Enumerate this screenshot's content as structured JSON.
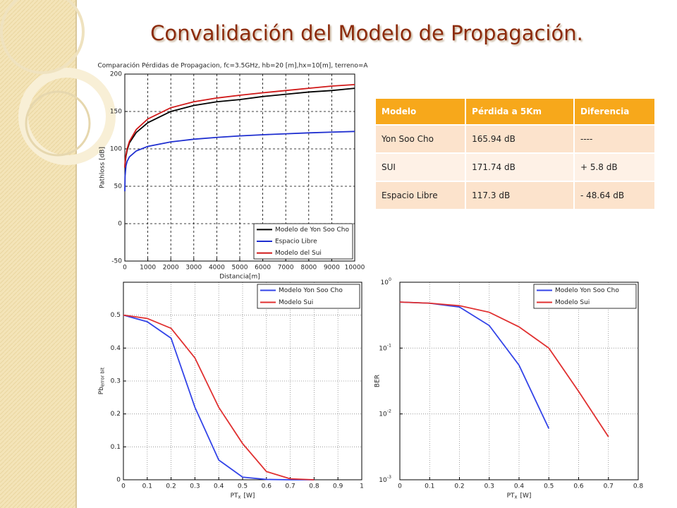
{
  "title": "Convalidación del Modelo de Propagación.",
  "table": {
    "header": [
      "Modelo",
      "Pérdida a 5Km",
      "Diferencia"
    ],
    "rows": [
      [
        "Yon Soo Cho",
        "165.94 dB",
        "----"
      ],
      [
        "SUI",
        "171.74 dB",
        "+ 5.8 dB"
      ],
      [
        "Espacio Libre",
        "117.3 dB",
        "- 48.64 dB"
      ]
    ]
  },
  "chart_data": [
    {
      "type": "line",
      "title": "Comparación Pérdidas de Propagacion, fc=3.5GHz, hb=20 [m],hx=10[m], terreno=A",
      "xlabel": "Distancia[m]",
      "ylabel": "Pathloss [dB]",
      "x": [
        1,
        10,
        50,
        100,
        200,
        500,
        1000,
        2000,
        3000,
        4000,
        5000,
        6000,
        7000,
        8000,
        9000,
        10000
      ],
      "series": [
        {
          "name": "Modelo de Yon Soo Cho",
          "color": "#000000",
          "values": [
            75,
            80,
            90,
            98,
            108,
            122,
            135,
            150,
            158,
            163,
            165.94,
            170,
            173,
            176,
            178,
            181
          ]
        },
        {
          "name": "Espacio Libre",
          "color": "#1f2fd0",
          "values": [
            43.3,
            63.3,
            77.3,
            83.3,
            89.3,
            97.3,
            103.3,
            109.3,
            112.9,
            115.3,
            117.3,
            118.9,
            120.2,
            121.4,
            122.4,
            123.3
          ]
        },
        {
          "name": "Modelo del Sui",
          "color": "#d01818",
          "values": [
            75,
            82,
            92,
            100,
            110,
            126,
            140,
            155,
            163,
            168,
            171.74,
            175,
            178,
            181,
            184,
            186
          ]
        }
      ],
      "xlim": [
        0,
        10000
      ],
      "xticks": [
        0,
        1000,
        2000,
        3000,
        4000,
        5000,
        6000,
        7000,
        8000,
        9000,
        10000
      ],
      "ylim": [
        -50,
        200
      ],
      "yticks": [
        -50,
        0,
        50,
        100,
        150,
        200
      ],
      "grid": true,
      "legend": "lower right"
    },
    {
      "type": "line",
      "xlabel": {
        "text": "PT",
        "sub": "x",
        "suffix": "[W]"
      },
      "ylabel": {
        "text": "Pb",
        "sub": "error bit"
      },
      "series": [
        {
          "name": "Modelo Yon Soo Cho",
          "color": "#3344e8",
          "x": [
            0,
            0.1,
            0.2,
            0.3,
            0.4,
            0.5,
            0.6,
            0.7,
            0.8
          ],
          "values": [
            0.5,
            0.48,
            0.43,
            0.22,
            0.06,
            0.008,
            0.001,
            0,
            0
          ]
        },
        {
          "name": "Modelo Sui",
          "color": "#e03030",
          "x": [
            0,
            0.1,
            0.2,
            0.3,
            0.4,
            0.5,
            0.6,
            0.7,
            0.8
          ],
          "values": [
            0.5,
            0.49,
            0.46,
            0.37,
            0.22,
            0.11,
            0.025,
            0.003,
            0
          ]
        }
      ],
      "xlim": [
        0,
        1
      ],
      "xticks": [
        0,
        0.1,
        0.2,
        0.3,
        0.4,
        0.5,
        0.6,
        0.7,
        0.8,
        0.9,
        1
      ],
      "ylim": [
        0,
        0.6
      ],
      "yticks": [
        0,
        0.1,
        0.2,
        0.3,
        0.4,
        0.5
      ],
      "grid": true,
      "legend": "upper right"
    },
    {
      "type": "line",
      "xlabel": {
        "text": "PT",
        "sub": "x",
        "suffix": "[W]"
      },
      "ylabel": "BER",
      "ylog": true,
      "series": [
        {
          "name": "Modelo Yon Soo Cho",
          "color": "#3344e8",
          "x": [
            0,
            0.1,
            0.2,
            0.3,
            0.4,
            0.5
          ],
          "values": [
            0.5,
            0.48,
            0.42,
            0.22,
            0.055,
            0.006
          ]
        },
        {
          "name": "Modelo Sui",
          "color": "#e03030",
          "x": [
            0,
            0.1,
            0.2,
            0.3,
            0.4,
            0.5,
            0.6,
            0.7
          ],
          "values": [
            0.5,
            0.48,
            0.44,
            0.35,
            0.21,
            0.1,
            0.022,
            0.0045
          ]
        }
      ],
      "xlim": [
        0,
        0.8
      ],
      "xticks": [
        0,
        0.1,
        0.2,
        0.3,
        0.4,
        0.5,
        0.6,
        0.7,
        0.8
      ],
      "ylim": [
        0.001,
        1
      ],
      "yticks": [
        {
          "value": 0.001,
          "label": "10",
          "exponent": "-3"
        },
        {
          "value": 0.01,
          "label": "10",
          "exponent": "-2"
        },
        {
          "value": 0.1,
          "label": "10",
          "exponent": "-1"
        },
        {
          "value": 1,
          "label": "10",
          "exponent": "0"
        }
      ],
      "grid": true,
      "legend": "upper right"
    }
  ]
}
